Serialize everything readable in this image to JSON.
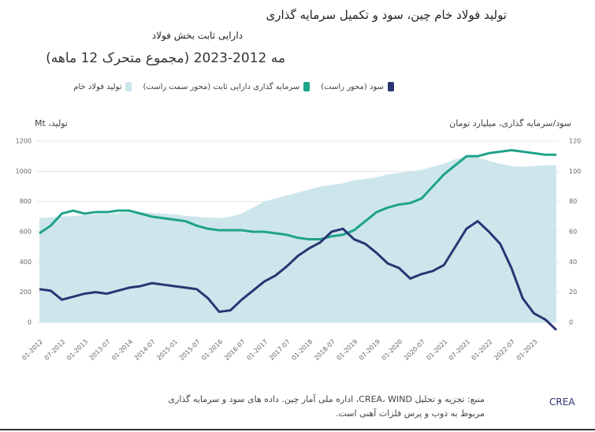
{
  "chart_data": {
    "type": "area_lines",
    "title": "تولید فولاد خام چین، سود و تکمیل سرمایه گذاری",
    "subtitle": "دارایی ثابت بخش فولاد",
    "period": "مه 2012-2023 (مجموع متحرک 12 ماهه)",
    "ylabel": "تولید، Mt",
    "y2label": "سود/سرمایه گذاری، میلیارد تومان",
    "source": "منبع: تجزیه و تحلیل CREA، WIND، اداره ملی آمار چین. داده های سود و سرمایه گذاری",
    "source2": "مربوط به ذوب و پرس فلزات آهنی است.",
    "logo": "CREA",
    "categories": [
      "01-2012",
      null,
      "07-2012",
      null,
      "01-2013",
      null,
      "2013-07",
      null,
      "01-2014",
      null,
      "2014-07",
      null,
      "2015-01",
      null,
      "2015-07",
      null,
      "01-2016",
      null,
      "2016-07",
      null,
      "01-2017",
      null,
      "2017-07",
      null,
      "01-2018",
      null,
      "2018-07",
      null,
      "01-2019",
      null,
      "07-2019",
      null,
      "01-2020",
      null,
      "2020-07",
      null,
      "01-2021",
      null,
      "07-2021",
      null,
      "01-2022",
      null,
      "2022-07",
      null,
      "01-2023",
      null,
      null
    ],
    "series": [
      {
        "name": "تولید فولاد خام",
        "color": "#cde6ec",
        "kind": "area",
        "values": [
          690,
          695,
          700,
          705,
          710,
          715,
          720,
          725,
          730,
          730,
          725,
          720,
          715,
          705,
          700,
          695,
          690,
          700,
          720,
          760,
          800,
          820,
          840,
          860,
          880,
          900,
          910,
          920,
          940,
          950,
          960,
          980,
          990,
          1000,
          1010,
          1030,
          1050,
          1080,
          1100,
          1090,
          1070,
          1050,
          1035,
          1030,
          1035,
          1040,
          1040
        ]
      },
      {
        "name": "سرمایه گذاری دارایی ثابت (محور سمت راست)",
        "color": "#1fa38a",
        "kind": "line",
        "axis": "y2",
        "values": [
          59,
          64,
          72,
          74,
          72,
          73,
          73,
          74,
          74,
          72,
          70,
          69,
          68,
          67,
          64,
          62,
          61,
          61,
          61,
          60,
          60,
          59,
          58,
          56,
          55,
          55,
          57,
          58,
          61,
          67,
          73,
          76,
          78,
          79,
          82,
          90,
          98,
          104,
          110,
          110,
          112,
          113,
          114,
          113,
          112,
          111,
          111
        ]
      },
      {
        "name": "سود (محور راست)",
        "color": "#2b3473",
        "kind": "line",
        "axis": "y2",
        "values": [
          22,
          21,
          15,
          17,
          19,
          20,
          19,
          21,
          23,
          24,
          26,
          25,
          24,
          23,
          22,
          16,
          7,
          8,
          15,
          21,
          27,
          31,
          37,
          44,
          49,
          53,
          60,
          62,
          55,
          52,
          46,
          39,
          36,
          29,
          32,
          34,
          38,
          50,
          62,
          67,
          60,
          52,
          36,
          16,
          6,
          2,
          -5
        ]
      }
    ],
    "ylim": [
      -80,
      1250
    ],
    "yticks": [
      0,
      200,
      400,
      600,
      800,
      1000,
      1200
    ],
    "y2lim": [
      -8,
      125
    ],
    "y2ticks": [
      0,
      20,
      40,
      60,
      80,
      100,
      120
    ],
    "grid": true
  }
}
